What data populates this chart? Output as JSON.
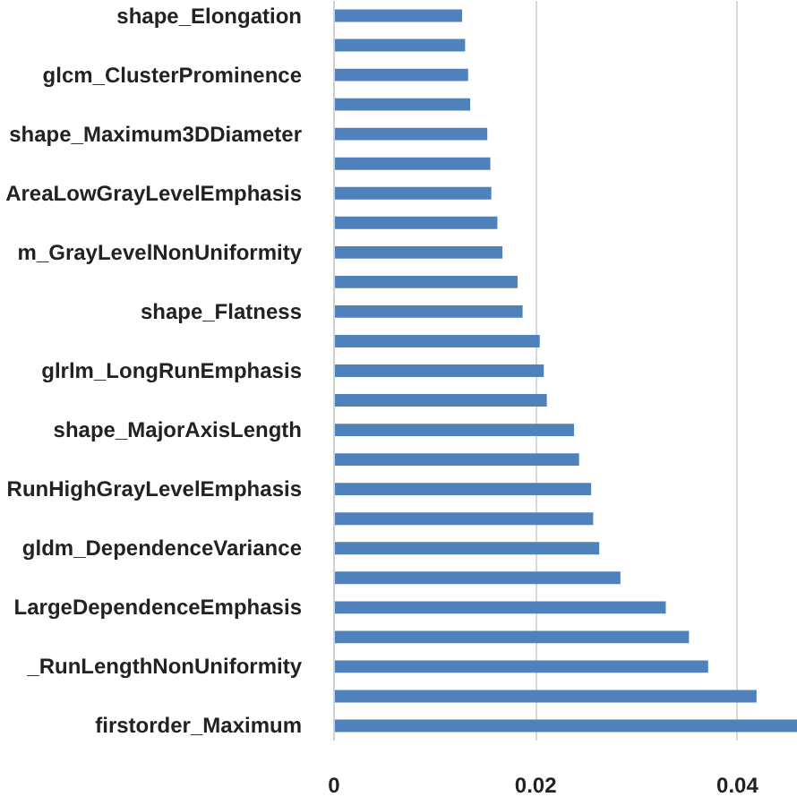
{
  "chart_data": {
    "type": "bar",
    "orientation": "horizontal",
    "categories": [
      "shape_Elongation",
      null,
      "glcm_ClusterProminence",
      null,
      "shape_Maximum3DDiameter",
      null,
      "AreaLowGrayLevelEmphasis",
      null,
      "m_GrayLevelNonUniformity",
      null,
      "shape_Flatness",
      null,
      "glrlm_LongRunEmphasis",
      null,
      "shape_MajorAxisLength",
      null,
      "RunHighGrayLevelEmphasis",
      null,
      "gldm_DependenceVariance",
      null,
      "LargeDependenceEmphasis",
      null,
      "_RunLengthNonUniformity",
      null,
      "firstorder_Maximum"
    ],
    "values": [
      0.0127,
      0.013,
      0.0133,
      0.0135,
      0.0152,
      0.0155,
      0.0156,
      0.0162,
      0.0167,
      0.0182,
      0.0187,
      0.0204,
      0.0208,
      0.0211,
      0.0238,
      0.0243,
      0.0255,
      0.0257,
      0.0263,
      0.0284,
      0.0329,
      0.0352,
      0.0371,
      0.0419,
      0.046
    ],
    "color": "#4f81bd",
    "xlim": [
      0,
      0.046
    ],
    "xticks": [
      0,
      0.02,
      0.04
    ],
    "grid": "x"
  }
}
